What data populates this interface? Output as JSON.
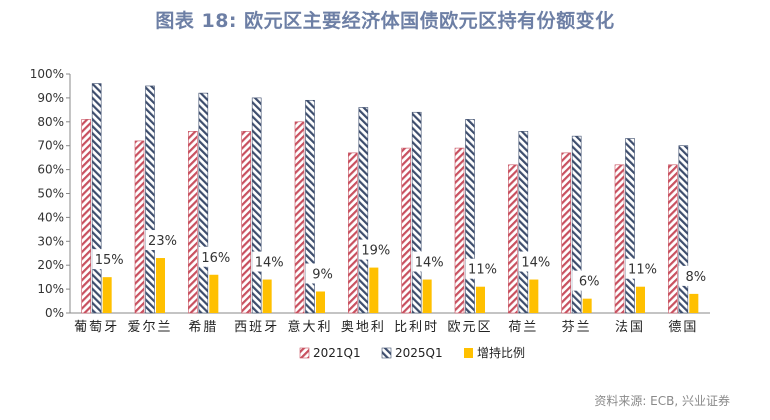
{
  "chart_data": {
    "type": "bar",
    "title": "图表 18: 欧元区主要经济体国债欧元区持有份额变化",
    "categories": [
      "葡萄牙",
      "爱尔兰",
      "希腊",
      "西班牙",
      "意大利",
      "奥地利",
      "比利时",
      "欧元区",
      "荷兰",
      "芬兰",
      "法国",
      "德国"
    ],
    "series": [
      {
        "name": "2021Q1",
        "values": [
          81,
          72,
          76,
          76,
          80,
          67,
          69,
          69,
          62,
          67,
          62,
          62
        ]
      },
      {
        "name": "2025Q1",
        "values": [
          96,
          95,
          92,
          90,
          89,
          86,
          84,
          81,
          76,
          74,
          73,
          70
        ]
      },
      {
        "name": "增持比例",
        "values": [
          15,
          23,
          16,
          14,
          9,
          19,
          14,
          11,
          14,
          6,
          11,
          8
        ]
      }
    ],
    "data_labels": [
      "15%",
      "23%",
      "16%",
      "14%",
      "9%",
      "19%",
      "14%",
      "11%",
      "14%",
      "6%",
      "11%",
      "8%"
    ],
    "ylim": [
      0,
      100
    ],
    "yticks": [
      "0%",
      "10%",
      "20%",
      "30%",
      "40%",
      "50%",
      "60%",
      "70%",
      "80%",
      "90%",
      "100%"
    ],
    "legend_position": "bottom",
    "source": "资料来源: ECB, 兴业证券",
    "colors": {
      "s2021": "#c8505f",
      "s2025": "#3d4d6d",
      "increase": "#ffc000",
      "title": "#6d7fa5"
    }
  }
}
